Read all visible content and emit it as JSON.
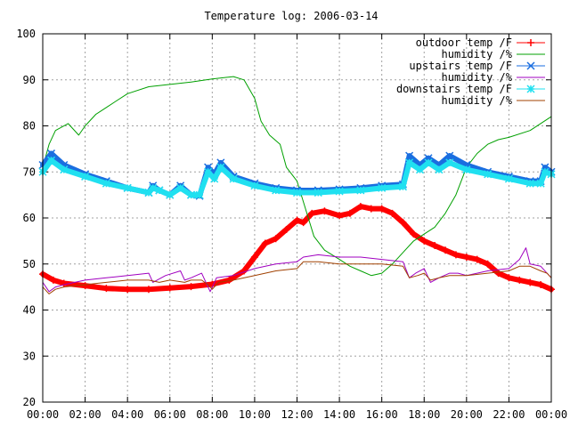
{
  "chart_data": {
    "type": "line",
    "title": "Temperature log: 2006-03-14",
    "xlabel": "",
    "ylabel": "",
    "xlim": [
      0,
      24
    ],
    "ylim": [
      20,
      100
    ],
    "grid": true,
    "legend_position": "top-right",
    "x_ticks": [
      "00:00",
      "02:00",
      "04:00",
      "06:00",
      "08:00",
      "10:00",
      "12:00",
      "14:00",
      "16:00",
      "18:00",
      "20:00",
      "22:00",
      "00:00"
    ],
    "y_ticks": [
      "20",
      "30",
      "40",
      "50",
      "60",
      "70",
      "80",
      "90",
      "100"
    ],
    "series": [
      {
        "name": "outdoor temp /F",
        "color": "#ff0000",
        "marker": "plus",
        "points": [
          [
            0,
            47.8
          ],
          [
            0.5,
            46.5
          ],
          [
            1,
            45.8
          ],
          [
            2,
            45.3
          ],
          [
            3,
            44.7
          ],
          [
            4,
            44.5
          ],
          [
            5,
            44.5
          ],
          [
            6,
            44.8
          ],
          [
            7,
            45.1
          ],
          [
            8,
            45.6
          ],
          [
            8.8,
            46.5
          ],
          [
            9.5,
            48.5
          ],
          [
            10,
            51.5
          ],
          [
            10.5,
            54.5
          ],
          [
            11,
            55.5
          ],
          [
            11.5,
            57.5
          ],
          [
            12,
            59.5
          ],
          [
            12.3,
            59
          ],
          [
            12.7,
            61
          ],
          [
            13.3,
            61.5
          ],
          [
            14,
            60.5
          ],
          [
            14.5,
            61
          ],
          [
            15,
            62.5
          ],
          [
            15.5,
            62
          ],
          [
            16,
            62
          ],
          [
            16.5,
            61
          ],
          [
            17,
            59
          ],
          [
            17.5,
            56.5
          ],
          [
            18,
            55
          ],
          [
            18.5,
            54
          ],
          [
            19,
            53
          ],
          [
            19.5,
            52
          ],
          [
            20,
            51.5
          ],
          [
            20.5,
            51
          ],
          [
            21,
            50
          ],
          [
            21.5,
            48
          ],
          [
            22,
            47
          ],
          [
            22.5,
            46.5
          ],
          [
            23,
            46
          ],
          [
            23.5,
            45.5
          ],
          [
            24,
            44.5
          ]
        ]
      },
      {
        "name": "humidity /%",
        "color": "#00a000",
        "marker": "none",
        "points": [
          [
            0,
            71
          ],
          [
            0.3,
            76
          ],
          [
            0.6,
            79
          ],
          [
            1.2,
            80.5
          ],
          [
            1.7,
            78
          ],
          [
            2,
            80
          ],
          [
            2.5,
            82.5
          ],
          [
            3,
            84
          ],
          [
            3.5,
            85.5
          ],
          [
            4,
            87
          ],
          [
            5,
            88.5
          ],
          [
            6,
            89
          ],
          [
            7,
            89.5
          ],
          [
            8,
            90.2
          ],
          [
            9,
            90.7
          ],
          [
            9.5,
            90
          ],
          [
            10,
            86
          ],
          [
            10.3,
            81
          ],
          [
            10.7,
            78
          ],
          [
            11.2,
            76
          ],
          [
            11.5,
            71
          ],
          [
            12,
            68
          ],
          [
            12.4,
            62
          ],
          [
            12.8,
            56
          ],
          [
            13.3,
            53
          ],
          [
            14,
            51
          ],
          [
            14.5,
            49.5
          ],
          [
            15,
            48.5
          ],
          [
            15.5,
            47.5
          ],
          [
            16,
            48
          ],
          [
            16.5,
            50
          ],
          [
            17,
            52.5
          ],
          [
            17.5,
            55
          ],
          [
            18,
            56.5
          ],
          [
            18.5,
            58
          ],
          [
            19,
            61
          ],
          [
            19.5,
            65
          ],
          [
            20,
            71
          ],
          [
            20.5,
            74
          ],
          [
            21,
            76
          ],
          [
            21.5,
            77
          ],
          [
            22,
            77.5
          ],
          [
            23,
            79
          ],
          [
            24,
            82
          ]
        ]
      },
      {
        "name": "upstairs temp /F",
        "color": "#1a6ee0",
        "marker": "cross",
        "points": [
          [
            0,
            71.5
          ],
          [
            0.4,
            74
          ],
          [
            1,
            71.5
          ],
          [
            2,
            69.5
          ],
          [
            3,
            68
          ],
          [
            4,
            66.5
          ],
          [
            5,
            65.5
          ],
          [
            5.2,
            67
          ],
          [
            5.5,
            66
          ],
          [
            6,
            65
          ],
          [
            6.5,
            67
          ],
          [
            7,
            65
          ],
          [
            7.4,
            64.8
          ],
          [
            7.8,
            71
          ],
          [
            8.1,
            69.5
          ],
          [
            8.4,
            72
          ],
          [
            9,
            69
          ],
          [
            10,
            67.5
          ],
          [
            11,
            66.5
          ],
          [
            12,
            66
          ],
          [
            13,
            66
          ],
          [
            14,
            66.2
          ],
          [
            15,
            66.5
          ],
          [
            16,
            67
          ],
          [
            17,
            67.3
          ],
          [
            17.3,
            73.5
          ],
          [
            17.8,
            71.5
          ],
          [
            18.2,
            73
          ],
          [
            18.7,
            71.5
          ],
          [
            19.2,
            73.5
          ],
          [
            20,
            71.5
          ],
          [
            21,
            70
          ],
          [
            22,
            69
          ],
          [
            23,
            68
          ],
          [
            23.5,
            68
          ],
          [
            23.7,
            71
          ],
          [
            24,
            70
          ]
        ]
      },
      {
        "name": "humidity /%",
        "color": "#a000c0",
        "marker": "none",
        "points": [
          [
            0,
            46
          ],
          [
            0.3,
            44
          ],
          [
            0.6,
            45
          ],
          [
            1,
            45.5
          ],
          [
            2,
            46.5
          ],
          [
            3,
            47
          ],
          [
            4,
            47.5
          ],
          [
            5,
            48
          ],
          [
            5.2,
            46
          ],
          [
            5.8,
            47.5
          ],
          [
            6.5,
            48.5
          ],
          [
            6.7,
            46.5
          ],
          [
            7,
            47
          ],
          [
            7.5,
            48
          ],
          [
            7.7,
            46
          ],
          [
            7.9,
            44
          ],
          [
            8.2,
            47
          ],
          [
            9,
            47.5
          ],
          [
            10,
            49
          ],
          [
            11,
            50
          ],
          [
            12,
            50.5
          ],
          [
            12.3,
            51.5
          ],
          [
            13,
            52
          ],
          [
            14,
            51.5
          ],
          [
            15,
            51.5
          ],
          [
            16,
            51
          ],
          [
            17,
            50.5
          ],
          [
            17.3,
            47
          ],
          [
            17.6,
            48
          ],
          [
            18,
            49
          ],
          [
            18.3,
            46
          ],
          [
            18.7,
            47
          ],
          [
            19.2,
            48
          ],
          [
            19.6,
            48
          ],
          [
            20,
            47.5
          ],
          [
            21,
            48.5
          ],
          [
            22,
            49
          ],
          [
            22.5,
            51
          ],
          [
            22.8,
            53.5
          ],
          [
            23,
            50
          ],
          [
            23.5,
            49.5
          ],
          [
            23.8,
            48
          ],
          [
            24,
            47
          ]
        ]
      },
      {
        "name": "downstairs temp /F",
        "color": "#20e0f0",
        "marker": "star",
        "points": [
          [
            0,
            70
          ],
          [
            0.4,
            72.5
          ],
          [
            1,
            70.5
          ],
          [
            2,
            69
          ],
          [
            3,
            67.5
          ],
          [
            4,
            66.5
          ],
          [
            5,
            65.5
          ],
          [
            5.2,
            66.5
          ],
          [
            5.5,
            66
          ],
          [
            6,
            65
          ],
          [
            6.5,
            66.5
          ],
          [
            7,
            65
          ],
          [
            7.4,
            65
          ],
          [
            7.8,
            70
          ],
          [
            8.1,
            68.5
          ],
          [
            8.4,
            71
          ],
          [
            9,
            68.5
          ],
          [
            10,
            67
          ],
          [
            11,
            66
          ],
          [
            12,
            65.5
          ],
          [
            13,
            65.5
          ],
          [
            14,
            65.8
          ],
          [
            15,
            66
          ],
          [
            16,
            66.5
          ],
          [
            17,
            66.8
          ],
          [
            17.3,
            72
          ],
          [
            17.8,
            70.5
          ],
          [
            18.2,
            72
          ],
          [
            18.7,
            70.5
          ],
          [
            19.2,
            72
          ],
          [
            20,
            70.5
          ],
          [
            21,
            69.5
          ],
          [
            22,
            68.5
          ],
          [
            23,
            67.5
          ],
          [
            23.5,
            67.5
          ],
          [
            23.7,
            70
          ],
          [
            24,
            69.5
          ]
        ]
      },
      {
        "name": "humidity /%",
        "color": "#a04000",
        "marker": "none",
        "points": [
          [
            0,
            45
          ],
          [
            0.3,
            43.5
          ],
          [
            0.6,
            44.5
          ],
          [
            1,
            45
          ],
          [
            2,
            45.5
          ],
          [
            3,
            46
          ],
          [
            4,
            46.5
          ],
          [
            5,
            46.5
          ],
          [
            5.5,
            46
          ],
          [
            6,
            46.5
          ],
          [
            6.7,
            46
          ],
          [
            7,
            46.5
          ],
          [
            7.5,
            46.5
          ],
          [
            7.8,
            45.5
          ],
          [
            8,
            44.5
          ],
          [
            8.3,
            46
          ],
          [
            9,
            46.5
          ],
          [
            10,
            47.5
          ],
          [
            11,
            48.5
          ],
          [
            12,
            49
          ],
          [
            12.3,
            50.5
          ],
          [
            13,
            50.5
          ],
          [
            14,
            50
          ],
          [
            15,
            50
          ],
          [
            16,
            50
          ],
          [
            17,
            49.5
          ],
          [
            17.3,
            47
          ],
          [
            17.7,
            47.5
          ],
          [
            18,
            48
          ],
          [
            18.3,
            46.5
          ],
          [
            18.7,
            47
          ],
          [
            19.2,
            47.5
          ],
          [
            20,
            47.5
          ],
          [
            21,
            48
          ],
          [
            22,
            48.5
          ],
          [
            22.5,
            49.5
          ],
          [
            23,
            49.5
          ],
          [
            23.5,
            48.5
          ],
          [
            23.8,
            48
          ],
          [
            24,
            47
          ]
        ]
      }
    ]
  }
}
